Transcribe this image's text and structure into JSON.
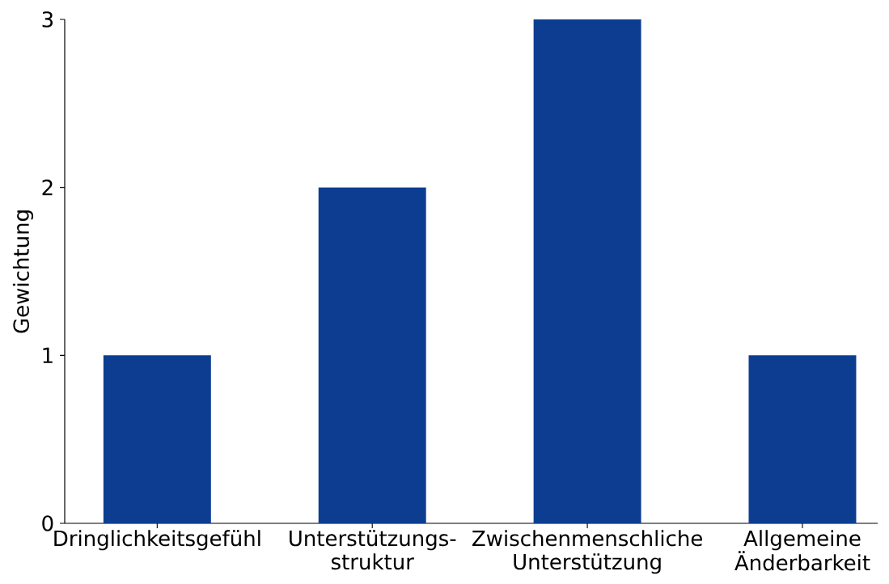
{
  "chart_data": {
    "type": "bar",
    "ylabel": "Gewichtung",
    "categories": [
      "Dringlichkeitsgefühl",
      "Unterstützungs- struktur",
      "Zwischenmenschliche Unterstützung",
      "Allgemeine Änderbarkeit"
    ],
    "values": [
      1,
      2,
      3,
      1
    ],
    "color": "#0d3d91",
    "ylim": [
      0,
      3
    ],
    "yticks": [
      0,
      1,
      2,
      3
    ],
    "grid": false
  }
}
